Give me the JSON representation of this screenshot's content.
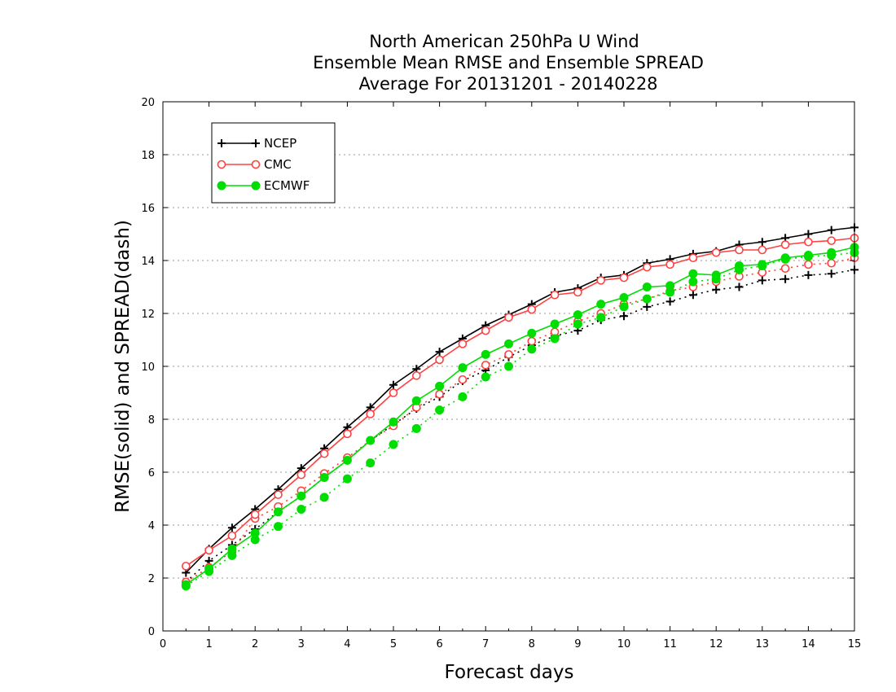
{
  "chart_data": {
    "type": "line",
    "title_lines": [
      "North American 250hPa U Wind",
      "Ensemble Mean RMSE and Ensemble SPREAD",
      "Average For 20131201 - 20140228"
    ],
    "xlabel": "Forecast days",
    "ylabel": "RMSE(solid) and SPREAD(dash)",
    "xlim": [
      0,
      15
    ],
    "ylim": [
      0,
      20
    ],
    "x_ticks": [
      "0",
      "1",
      "2",
      "3",
      "4",
      "5",
      "6",
      "7",
      "8",
      "9",
      "10",
      "11",
      "12",
      "13",
      "14",
      "15"
    ],
    "y_ticks": [
      "0",
      "2",
      "4",
      "6",
      "8",
      "10",
      "12",
      "14",
      "16",
      "18",
      "20"
    ],
    "grid": "horizontal dotted",
    "legend_position": "top-left",
    "x": [
      0.5,
      1,
      1.5,
      2,
      2.5,
      3,
      3.5,
      4,
      4.5,
      5,
      5.5,
      6,
      6.5,
      7,
      7.5,
      8,
      8.5,
      9,
      9.5,
      10,
      10.5,
      11,
      11.5,
      12,
      12.5,
      13,
      13.5,
      14,
      14.5,
      15
    ],
    "series": [
      {
        "name": "NCEP",
        "color": "#000000",
        "marker": "plus",
        "rmse": [
          2.2,
          3.1,
          3.9,
          4.6,
          5.35,
          6.15,
          6.9,
          7.7,
          8.45,
          9.3,
          9.9,
          10.55,
          11.05,
          11.55,
          11.95,
          12.35,
          12.8,
          12.95,
          13.35,
          13.45,
          13.9,
          14.05,
          14.25,
          14.35,
          14.6,
          14.7,
          14.85,
          15.0,
          15.15,
          15.25
        ],
        "spread": [
          1.85,
          2.65,
          3.25,
          3.85,
          4.5,
          5.1,
          5.8,
          6.45,
          7.2,
          7.8,
          8.4,
          8.85,
          9.45,
          9.85,
          10.35,
          10.8,
          11.15,
          11.35,
          11.75,
          11.9,
          12.25,
          12.45,
          12.7,
          12.9,
          13.0,
          13.25,
          13.3,
          13.45,
          13.5,
          13.65
        ]
      },
      {
        "name": "CMC",
        "color": "#ff4040",
        "marker": "open-circle",
        "rmse": [
          2.45,
          3.05,
          3.6,
          4.4,
          5.15,
          5.9,
          6.7,
          7.45,
          8.2,
          9.0,
          9.65,
          10.25,
          10.85,
          11.35,
          11.85,
          12.15,
          12.7,
          12.8,
          13.25,
          13.35,
          13.75,
          13.85,
          14.1,
          14.3,
          14.4,
          14.4,
          14.6,
          14.7,
          14.75,
          14.85
        ],
        "spread": [
          1.85,
          2.4,
          3.0,
          4.25,
          4.7,
          5.3,
          5.95,
          6.55,
          7.2,
          7.75,
          8.45,
          8.95,
          9.5,
          10.05,
          10.45,
          10.95,
          11.3,
          11.7,
          12.0,
          12.35,
          12.55,
          12.85,
          13.0,
          13.2,
          13.4,
          13.55,
          13.7,
          13.85,
          13.9,
          14.1
        ]
      },
      {
        "name": "ECMWF",
        "color": "#00dd00",
        "marker": "filled-circle",
        "rmse": [
          1.75,
          2.35,
          3.1,
          3.7,
          4.5,
          5.1,
          5.8,
          6.45,
          7.2,
          7.9,
          8.7,
          9.25,
          9.95,
          10.45,
          10.85,
          11.25,
          11.6,
          11.95,
          12.35,
          12.6,
          13.0,
          13.05,
          13.5,
          13.45,
          13.8,
          13.85,
          14.1,
          14.2,
          14.3,
          14.5
        ],
        "spread": [
          1.7,
          2.25,
          2.85,
          3.45,
          3.95,
          4.6,
          5.05,
          5.75,
          6.35,
          7.05,
          7.65,
          8.35,
          8.85,
          9.6,
          10.0,
          10.65,
          11.05,
          11.6,
          11.85,
          12.25,
          12.55,
          12.8,
          13.2,
          13.3,
          13.65,
          13.8,
          14.05,
          14.15,
          14.2,
          14.3
        ]
      }
    ]
  }
}
